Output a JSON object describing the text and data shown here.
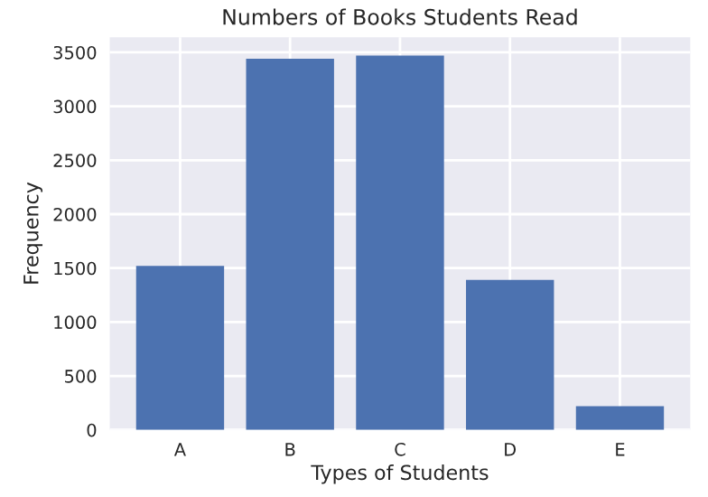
{
  "chart_data": {
    "type": "bar",
    "title": "Numbers of Books Students Read",
    "xlabel": "Types of Students",
    "ylabel": "Frequency",
    "categories": [
      "A",
      "B",
      "C",
      "D",
      "E"
    ],
    "values": [
      1520,
      3440,
      3470,
      1390,
      220
    ],
    "color": "#4c72b0",
    "ylim": [
      0,
      3640
    ],
    "yticks": [
      0,
      500,
      1000,
      1500,
      2000,
      2500,
      3000,
      3500
    ],
    "grid": true
  }
}
